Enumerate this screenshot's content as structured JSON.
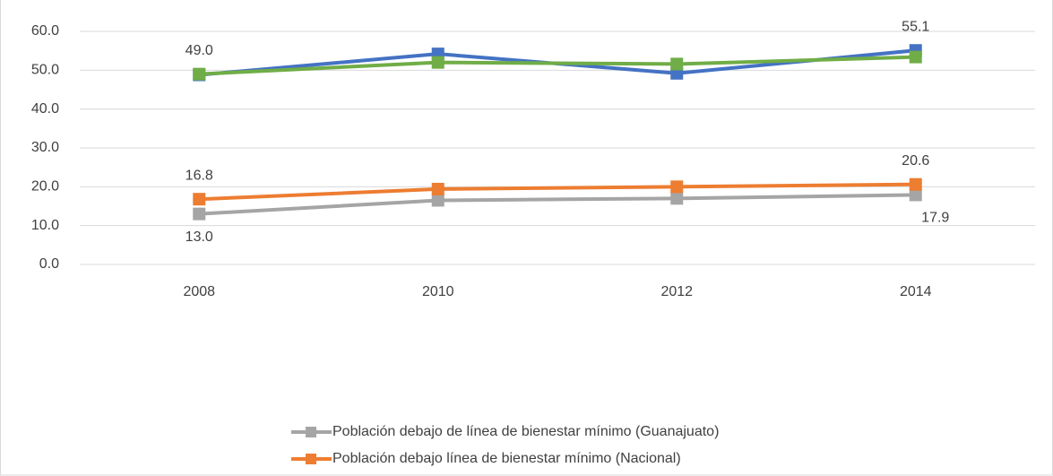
{
  "chart_data": {
    "type": "line",
    "categories": [
      "2008",
      "2010",
      "2012",
      "2014"
    ],
    "series": [
      {
        "name": "Población debajo de línea de bienestar mínimo (Guanajuato)",
        "color": "#a5a5a5",
        "values": [
          13.0,
          16.5,
          17.0,
          17.9
        ],
        "value_labels": [
          "13.0",
          null,
          null,
          "17.9"
        ]
      },
      {
        "name": "Población debajo línea de bienestar mínimo (Nacional)",
        "color": "#ed7d31",
        "values": [
          16.8,
          19.4,
          20.0,
          20.6
        ],
        "value_labels": [
          "16.8",
          null,
          null,
          "20.6"
        ]
      },
      {
        "color": "#4472c4",
        "values": [
          48.8,
          54.2,
          49.2,
          55.1
        ],
        "value_labels": [
          null,
          null,
          null,
          "55.1"
        ]
      },
      {
        "color": "#70ad47",
        "values": [
          49.0,
          52.0,
          51.6,
          53.4
        ],
        "value_labels": [
          "49.0",
          null,
          null,
          null
        ]
      }
    ],
    "ylim": [
      0,
      60
    ],
    "yticks": [
      {
        "value": 0,
        "label": "0.0"
      },
      {
        "value": 10,
        "label": "10.0"
      },
      {
        "value": 20,
        "label": "20.0"
      },
      {
        "value": 30,
        "label": "30.0"
      },
      {
        "value": 40,
        "label": "40.0"
      },
      {
        "value": 50,
        "label": "50.0"
      },
      {
        "value": 60,
        "label": "60.0"
      }
    ],
    "grid": true,
    "legend": "bottom"
  }
}
